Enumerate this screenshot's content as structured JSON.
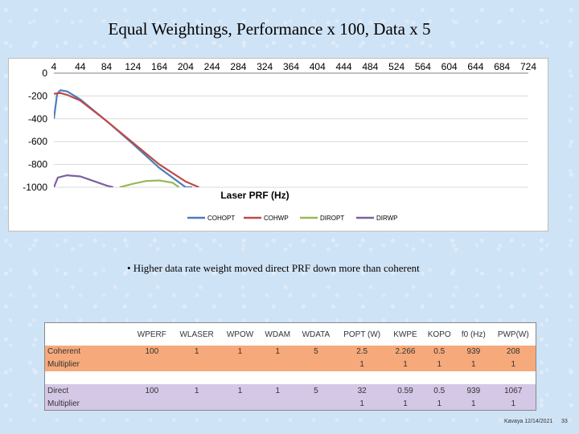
{
  "slide": {
    "title": "Equal Weightings, Performance x 100, Data x 5",
    "bullet": "• Higher data rate weight moved direct PRF down more than coherent"
  },
  "chart_data": {
    "type": "line",
    "xlabel": "Laser PRF (Hz)",
    "x_ticks": [
      4,
      44,
      84,
      124,
      164,
      204,
      244,
      284,
      324,
      364,
      404,
      444,
      484,
      524,
      564,
      604,
      644,
      684,
      724
    ],
    "y_ticks": [
      0,
      -200,
      -400,
      -600,
      -800,
      -1000
    ],
    "xlim": [
      4,
      724
    ],
    "ylim": [
      -1000,
      0
    ],
    "series": [
      {
        "name": "COHOPT",
        "color": "#4a7ebb",
        "x": [
          4,
          9,
          14,
          24,
          44,
          84,
          124,
          164,
          204,
          214
        ],
        "y": [
          -400,
          -180,
          -150,
          -160,
          -230,
          -420,
          -620,
          -830,
          -1000,
          -1000
        ]
      },
      {
        "name": "COHWP",
        "color": "#be4b48",
        "x": [
          4,
          14,
          24,
          44,
          84,
          124,
          164,
          204,
          224
        ],
        "y": [
          -180,
          -175,
          -190,
          -240,
          -420,
          -610,
          -800,
          -950,
          -1000
        ]
      },
      {
        "name": "DIROPT",
        "color": "#98b954",
        "x": [
          104,
          124,
          144,
          164,
          184,
          194
        ],
        "y": [
          -1000,
          -970,
          -945,
          -940,
          -960,
          -1000
        ]
      },
      {
        "name": "DIRWP",
        "color": "#7d60a0",
        "x": [
          4,
          10,
          24,
          44,
          64,
          84,
          94
        ],
        "y": [
          -1000,
          -915,
          -895,
          -905,
          -945,
          -985,
          -1000
        ]
      }
    ],
    "legend_position": "bottom",
    "grid": true
  },
  "table": {
    "headers": [
      "",
      "WPERF",
      "WLASER",
      "WPOW",
      "WDAM",
      "WDATA",
      "POPT (W)",
      "KWPE",
      "KOPO",
      "f0 (Hz)",
      "PWP(W)"
    ],
    "rows": [
      {
        "class": "coh",
        "cells": [
          "Coherent",
          "100",
          "1",
          "1",
          "1",
          "5",
          "2.5",
          "2.266",
          "0.5",
          "939",
          "208"
        ]
      },
      {
        "class": "coh",
        "cells": [
          "Multiplier",
          "",
          "",
          "",
          "",
          "",
          "1",
          "1",
          "1",
          "1",
          "1"
        ]
      },
      {
        "class": "spacer",
        "cells": [
          "",
          "",
          "",
          "",
          "",
          "",
          "",
          "",
          "",
          "",
          ""
        ]
      },
      {
        "class": "dir",
        "cells": [
          "Direct",
          "100",
          "1",
          "1",
          "1",
          "5",
          "32",
          "0.59",
          "0.5",
          "939",
          "1067"
        ]
      },
      {
        "class": "dir",
        "cells": [
          "Multiplier",
          "",
          "",
          "",
          "",
          "",
          "1",
          "1",
          "1",
          "1",
          "1"
        ]
      }
    ]
  },
  "footer": {
    "author_date": "Kavaya 12/14/2021",
    "page": "33"
  }
}
